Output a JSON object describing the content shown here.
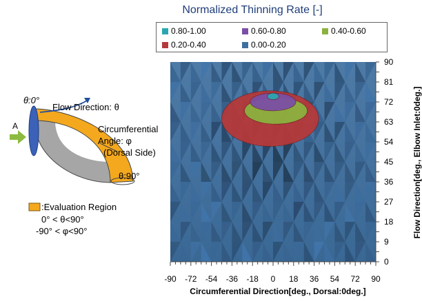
{
  "chart_data": {
    "type": "heatmap",
    "title": "Normalized Thinning Rate [-]",
    "xlabel": "Circumferential Direction[deg., Dorsal:0deg.]",
    "ylabel": "Flow Direction[deg., Elbow Inlet:0deg.]",
    "xlim": [
      -90,
      90
    ],
    "ylim": [
      0,
      90
    ],
    "x_ticks": [
      "-90",
      "-72",
      "-54",
      "-36",
      "-18",
      "0",
      "18",
      "36",
      "54",
      "72",
      "90"
    ],
    "y_ticks": [
      "0",
      "9",
      "18",
      "27",
      "36",
      "45",
      "54",
      "63",
      "72",
      "81",
      "90"
    ],
    "legend_position": "top",
    "legend": [
      {
        "label": "0.80-1.00",
        "color": "#2aa6b0"
      },
      {
        "label": "0.60-0.80",
        "color": "#7b4fa5"
      },
      {
        "label": "0.40-0.60",
        "color": "#8cb13f"
      },
      {
        "label": "0.20-0.40",
        "color": "#b5393a"
      },
      {
        "label": "0.00-0.20",
        "color": "#3f6f9f"
      }
    ],
    "regions": [
      {
        "range": "0.20-0.40",
        "x": [
          -45,
          40
        ],
        "y": [
          52,
          77
        ]
      },
      {
        "range": "0.40-0.60",
        "x": [
          -25,
          30
        ],
        "y": [
          62,
          74
        ]
      },
      {
        "range": "0.60-0.80",
        "x": [
          -20,
          20
        ],
        "y": [
          68,
          76
        ]
      },
      {
        "range": "0.80-1.00",
        "x": [
          -5,
          5
        ],
        "y": [
          73,
          76
        ]
      }
    ]
  },
  "diagram": {
    "angle_start": "θ:0°",
    "flow_direction": "Flow Direction: θ",
    "inlet_label": "A",
    "circumferential": [
      "Circumferential",
      "Angle: φ",
      "(Dorsal Side)"
    ],
    "angle_end": "θ:90°",
    "evaluation_region": ":Evaluation Region",
    "range_theta": "0°  < θ<90°",
    "range_phi": "-90°  < φ<90°"
  },
  "colors": {
    "region_fill": "#f4a81d",
    "pipe_inner": "#a6a6a6",
    "inlet_arrow": "#8dbb3f",
    "flow_arrow": "#1f4e9c"
  }
}
